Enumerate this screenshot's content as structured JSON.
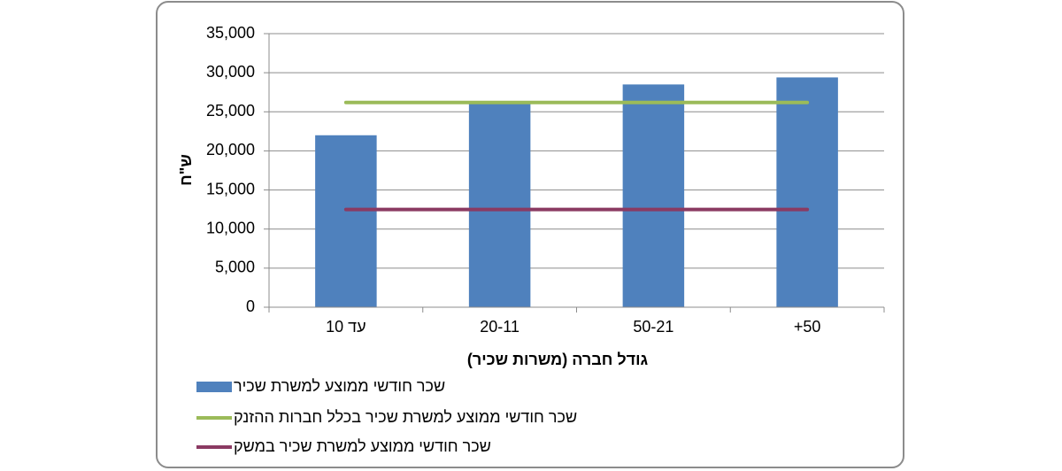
{
  "chart_data": {
    "type": "bar",
    "categories": [
      "עד 10",
      "20-11",
      "50-21",
      "+50"
    ],
    "series": [
      {
        "name": "שכר חודשי ממוצע למשרת שכיר",
        "kind": "bar",
        "color": "#4f81bd",
        "values": [
          22000,
          26000,
          28500,
          29400
        ]
      },
      {
        "name": "שכר חודשי ממוצע למשרת שכיר בכלל חברות ההזנק",
        "kind": "line",
        "color": "#9bbb59",
        "values": [
          26200,
          26200,
          26200,
          26200
        ]
      },
      {
        "name": "שכר חודשי ממוצע למשרת שכיר במשק",
        "kind": "line",
        "color": "#8b3a62",
        "values": [
          12500,
          12500,
          12500,
          12500
        ]
      }
    ],
    "xlabel": "גודל חברה (משרות שכיר)",
    "ylabel": "ש\"ח",
    "ylim": [
      0,
      35000
    ],
    "yticks": [
      "0",
      "5,000",
      "10,000",
      "15,000",
      "20,000",
      "25,000",
      "30,000",
      "35,000"
    ],
    "grid": true,
    "legend": "bottom"
  }
}
